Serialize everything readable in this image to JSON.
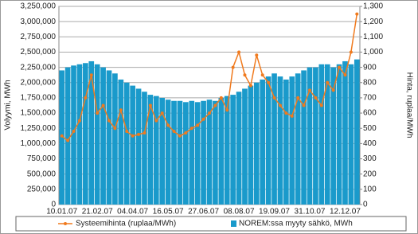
{
  "chart_data": {
    "type": "combo",
    "y_label": "Volyymi, MWh",
    "y2_label": "Hinta, ruplaa/MWh",
    "categories": [
      "10.01.07",
      null,
      null,
      null,
      null,
      null,
      "21.02.07",
      null,
      null,
      null,
      null,
      null,
      "04.04.07",
      null,
      null,
      null,
      null,
      null,
      "16.05.07",
      null,
      null,
      null,
      null,
      null,
      "27.06.07",
      null,
      null,
      null,
      null,
      null,
      "08.08.07",
      null,
      null,
      null,
      null,
      null,
      "19.09.07",
      null,
      null,
      null,
      null,
      null,
      "31.10.07",
      null,
      null,
      null,
      null,
      null,
      "12.12.07",
      null,
      null
    ],
    "series": [
      {
        "name": "Systeemihinta (ruplaa/MWh)",
        "type": "line",
        "axis": "y2",
        "color": "#f07a1e",
        "values": [
          450,
          420,
          480,
          550,
          700,
          850,
          600,
          650,
          550,
          500,
          620,
          480,
          450,
          460,
          470,
          650,
          550,
          600,
          520,
          480,
          450,
          470,
          500,
          520,
          560,
          600,
          650,
          700,
          620,
          900,
          1000,
          850,
          780,
          980,
          850,
          800,
          700,
          650,
          600,
          580,
          700,
          650,
          750,
          700,
          650,
          800,
          750,
          900,
          850,
          1000,
          1250
        ]
      },
      {
        "name": "NOREM:ssa myyty sähkö, MWh",
        "type": "bar",
        "color": "#1a9acb",
        "values": [
          2200000,
          2250000,
          2280000,
          2300000,
          2320000,
          2350000,
          2300000,
          2250000,
          2200000,
          2150000,
          2050000,
          2000000,
          1950000,
          1900000,
          1850000,
          1800000,
          1780000,
          1750000,
          1720000,
          1700000,
          1700000,
          1680000,
          1700000,
          1680000,
          1700000,
          1720000,
          1700000,
          1750000,
          1780000,
          1800000,
          1850000,
          1900000,
          1950000,
          2000000,
          2050000,
          2100000,
          2150000,
          2100000,
          2050000,
          2100000,
          2150000,
          2200000,
          2250000,
          2250000,
          2300000,
          2300000,
          2250000,
          2300000,
          2350000,
          2300000,
          2380000
        ]
      }
    ],
    "ylim": [
      0,
      3250000
    ],
    "yticks": [
      0,
      {
        "value": 250000,
        "label": "250,000"
      },
      {
        "value": 500000,
        "label": "500,000"
      },
      {
        "value": 750000,
        "label": "750,000"
      },
      {
        "value": 1000000,
        "label": "1,000,000"
      },
      {
        "value": 1250000,
        "label": "1,250,000"
      },
      {
        "value": 1500000,
        "label": "1,500,000"
      },
      {
        "value": 1750000,
        "label": "1,750,000"
      },
      {
        "value": 2000000,
        "label": "2,000,000"
      },
      {
        "value": 2250000,
        "label": "2,250,000"
      },
      {
        "value": 2500000,
        "label": "2,500,000"
      },
      {
        "value": 2750000,
        "label": "2,750,000"
      },
      {
        "value": 3000000,
        "label": "3,000,000"
      },
      {
        "value": 3250000,
        "label": "3,250,000"
      }
    ],
    "y2lim": [
      0,
      1300
    ],
    "y2ticks": [
      0,
      100,
      200,
      300,
      400,
      500,
      600,
      700,
      800,
      900,
      {
        "value": 1000,
        "label": "1,000"
      },
      {
        "value": 1100,
        "label": "1,100"
      },
      {
        "value": 1200,
        "label": "1,200"
      },
      {
        "value": 1300,
        "label": "1,300"
      }
    ],
    "grid": true
  }
}
